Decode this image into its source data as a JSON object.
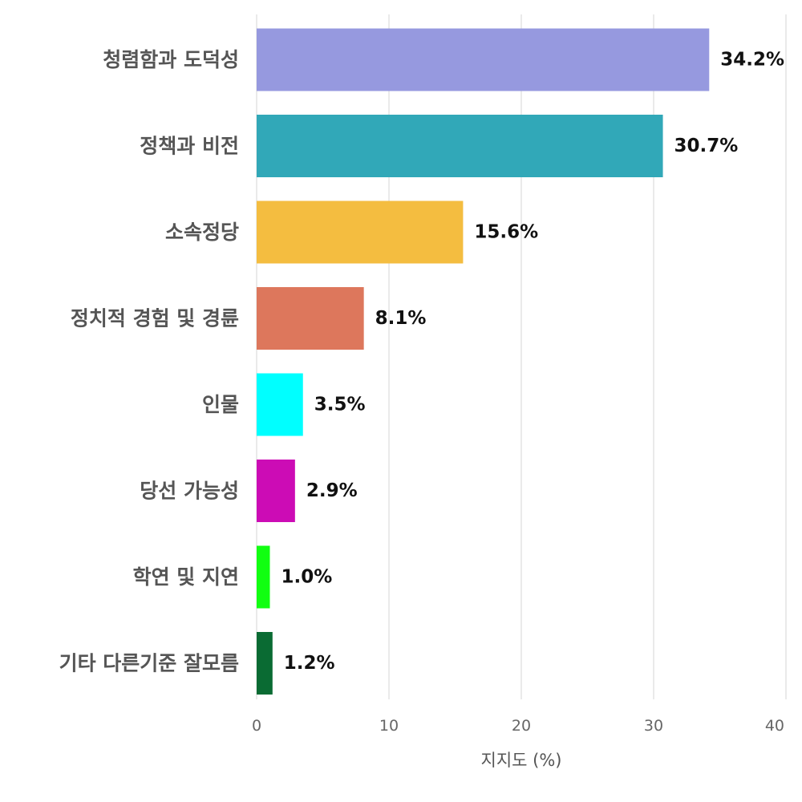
{
  "chart_data": {
    "type": "bar",
    "orientation": "horizontal",
    "categories": [
      "청렴함과 도덕성",
      "정책과 비전",
      "소속정당",
      "정치적 경험 및 경륜",
      "인물",
      "당선 가능성",
      "학연 및 지연",
      "기타 다른기준 잘모름"
    ],
    "values": [
      34.2,
      30.7,
      15.6,
      8.1,
      3.5,
      2.9,
      1.0,
      1.2
    ],
    "value_labels": [
      "34.2%",
      "30.7%",
      "15.6%",
      "8.1%",
      "3.5%",
      "2.9%",
      "1.0%",
      "1.2%"
    ],
    "colors": [
      "#9699df",
      "#31a8b8",
      "#f4bd40",
      "#dd775c",
      "#00ffff",
      "#cc0cb5",
      "#11ff11",
      "#0a6b33"
    ],
    "xlabel": "지지도 (%)",
    "ylabel": "",
    "title": "",
    "xlim": [
      0,
      40
    ],
    "xticks": [
      0,
      10,
      20,
      30,
      40
    ],
    "xtick_labels": [
      "0",
      "10",
      "20",
      "30",
      "40"
    ],
    "grid": "vertical",
    "legend": "none"
  }
}
